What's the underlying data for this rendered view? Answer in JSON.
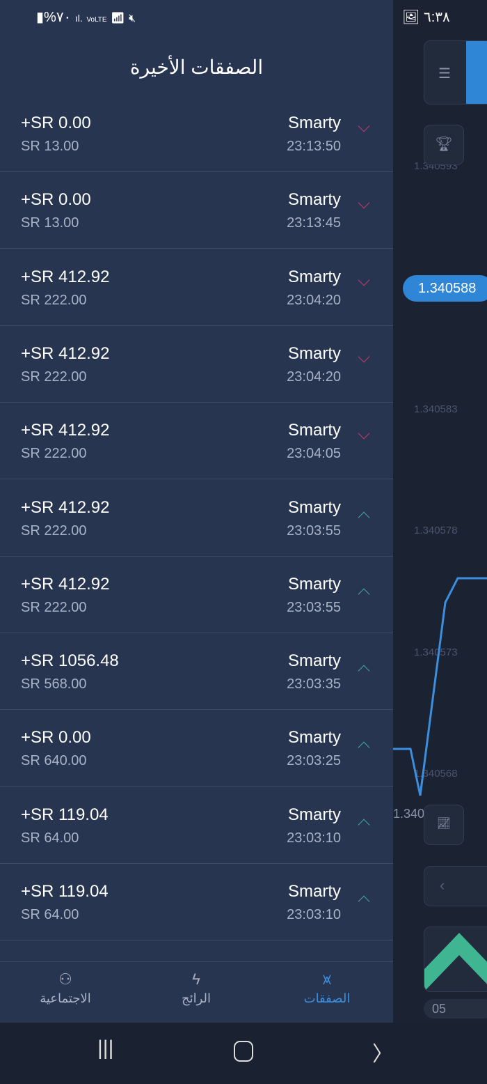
{
  "status_bar": {
    "battery": "%٧٠",
    "time": "٦:٣٨",
    "network": "VoLTE"
  },
  "title": "الصفقات الأخيرة",
  "trades": [
    {
      "name": "Smarty",
      "time": "23:13:50",
      "profit": "+SR 0.00",
      "stake": "SR 13.00",
      "direction": "down"
    },
    {
      "name": "Smarty",
      "time": "23:13:45",
      "profit": "+SR 0.00",
      "stake": "SR 13.00",
      "direction": "down"
    },
    {
      "name": "Smarty",
      "time": "23:04:20",
      "profit": "+SR 412.92",
      "stake": "SR 222.00",
      "direction": "down"
    },
    {
      "name": "Smarty",
      "time": "23:04:20",
      "profit": "+SR 412.92",
      "stake": "SR 222.00",
      "direction": "down"
    },
    {
      "name": "Smarty",
      "time": "23:04:05",
      "profit": "+SR 412.92",
      "stake": "SR 222.00",
      "direction": "down"
    },
    {
      "name": "Smarty",
      "time": "23:03:55",
      "profit": "+SR 412.92",
      "stake": "SR 222.00",
      "direction": "up"
    },
    {
      "name": "Smarty",
      "time": "23:03:55",
      "profit": "+SR 412.92",
      "stake": "SR 222.00",
      "direction": "up"
    },
    {
      "name": "Smarty",
      "time": "23:03:35",
      "profit": "+SR 1056.48",
      "stake": "SR 568.00",
      "direction": "up"
    },
    {
      "name": "Smarty",
      "time": "23:03:25",
      "profit": "+SR 0.00",
      "stake": "SR 640.00",
      "direction": "up"
    },
    {
      "name": "Smarty",
      "time": "23:03:10",
      "profit": "+SR 119.04",
      "stake": "SR 64.00",
      "direction": "up"
    },
    {
      "name": "Smarty",
      "time": "23:03:10",
      "profit": "+SR 119.04",
      "stake": "SR 64.00",
      "direction": "up"
    }
  ],
  "bottom_nav": [
    {
      "label": "الاجتماعية",
      "icon": "user-plus-icon"
    },
    {
      "label": "الرائج",
      "icon": "lightning-icon"
    },
    {
      "label": "الصفقات",
      "icon": "trades-icon",
      "active": true
    }
  ],
  "chart": {
    "price_labels": [
      "1.340593",
      "1.340583",
      "1.340578",
      "1.340573",
      "1.340568"
    ],
    "current_price": "1.340588",
    "low_label": "1.340",
    "time_label": "05"
  },
  "colors": {
    "panel": "#283550",
    "down": "#c23a6d",
    "up": "#3fa99b",
    "accent": "#3b8fde"
  }
}
